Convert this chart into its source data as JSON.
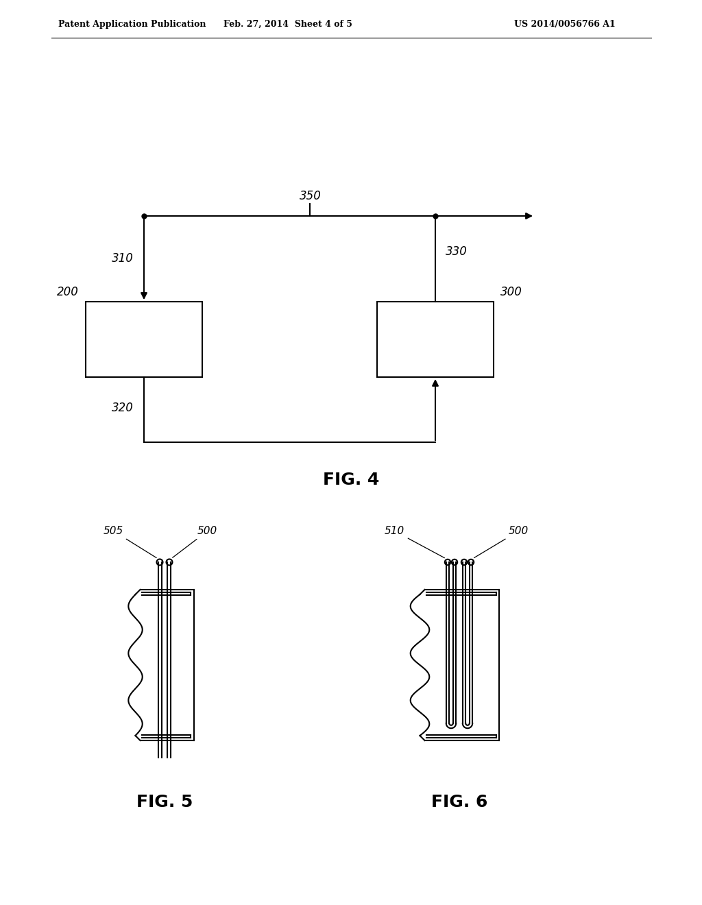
{
  "bg_color": "#ffffff",
  "header_left": "Patent Application Publication",
  "header_center": "Feb. 27, 2014  Sheet 4 of 5",
  "header_right": "US 2014/0056766 A1",
  "fig4_label": "FIG. 4",
  "fig5_label": "FIG. 5",
  "fig6_label": "FIG. 6",
  "line_color": "#000000",
  "lw": 1.5
}
